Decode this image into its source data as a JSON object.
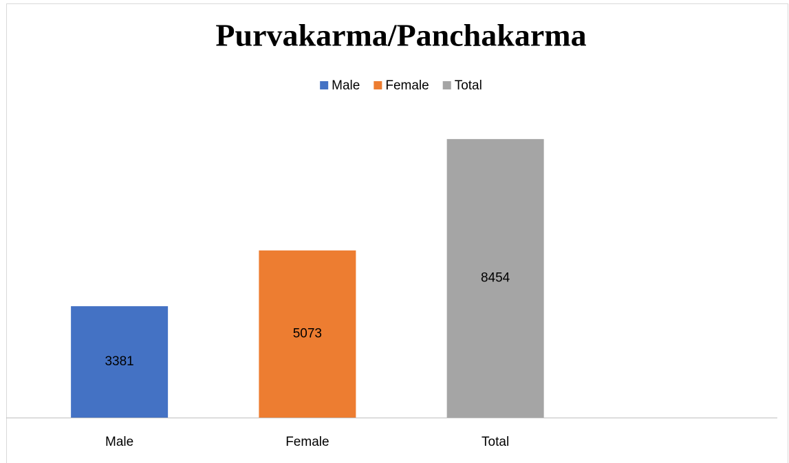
{
  "chart_data": {
    "type": "bar",
    "title": "Purvakarma/Panchakarma",
    "categories": [
      "Male",
      "Female",
      "Total",
      null
    ],
    "values": [
      3381,
      5073,
      8454,
      null
    ],
    "colors": [
      "#4472c4",
      "#ed7d31",
      "#a5a5a5",
      null
    ],
    "ylim": [
      0,
      9000
    ],
    "legend": "top"
  }
}
